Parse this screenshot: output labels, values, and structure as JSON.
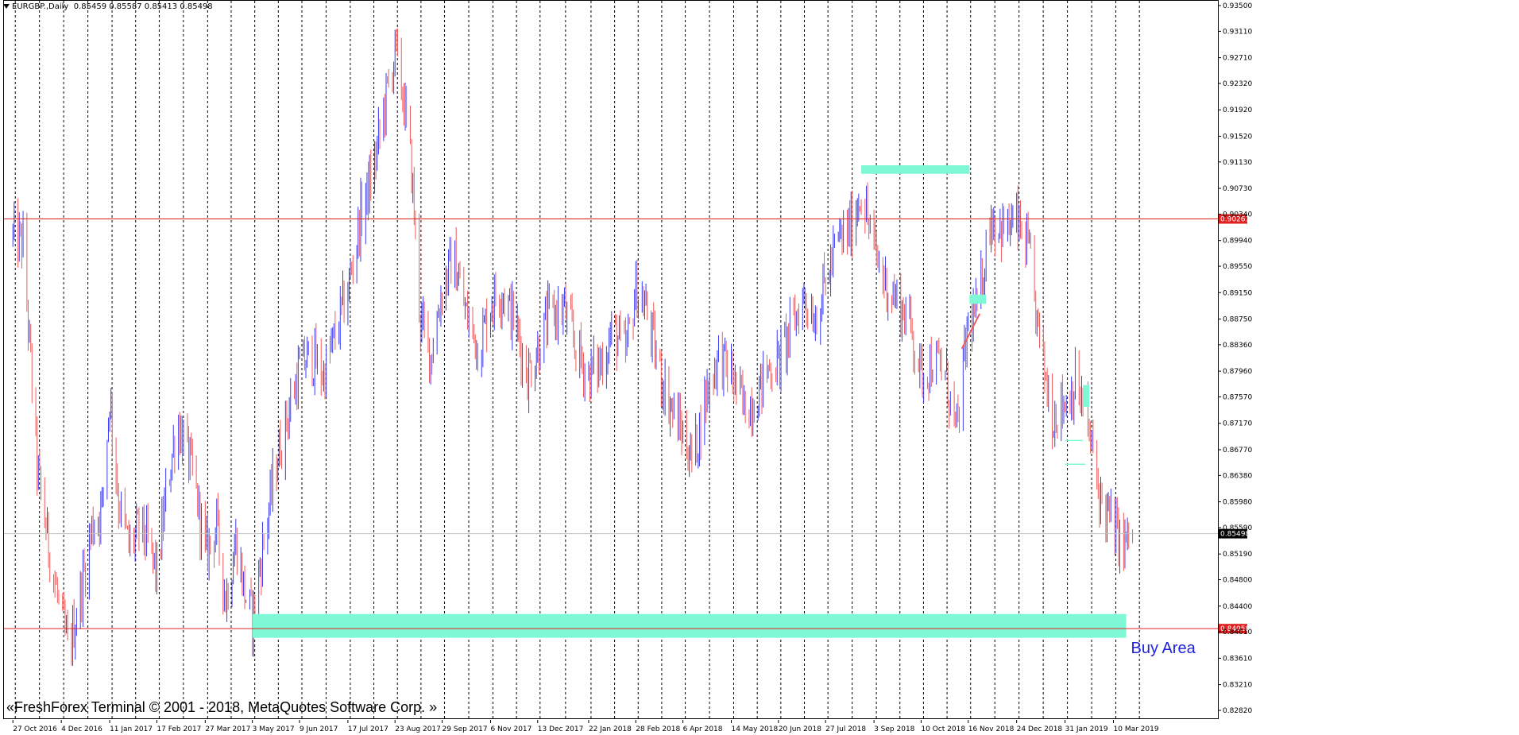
{
  "window": {
    "symbol": "EURGBP.",
    "timeframe": "Daily",
    "ohlc": "0.85459 0.85587 0.85413 0.85498"
  },
  "copyright": "«FreshForex Terminal © 2001 - 2018, MetaQuotes Software Corp. »",
  "annotation_label": "Buy Area",
  "colors": {
    "background": "#ffffff",
    "bull_candle": "#3b3bf0",
    "bear_candle": "#f05a5a",
    "zone": "#7ff8d6",
    "level_line": "#e02020",
    "price_tag": "#e02020",
    "current_price_tag": "#000000",
    "annotation": "#1e22dc"
  },
  "chart_data": {
    "type": "candlestick",
    "y_axis": {
      "min": 0.8282,
      "max": 0.935,
      "ticks": [
        "0.93500",
        "0.93110",
        "0.92710",
        "0.92320",
        "0.91920",
        "0.91520",
        "0.91130",
        "0.90730",
        "0.90340",
        "0.89940",
        "0.89550",
        "0.89150",
        "0.88750",
        "0.88360",
        "0.87960",
        "0.87570",
        "0.87170",
        "0.86770",
        "0.86380",
        "0.85980",
        "0.85590",
        "0.85190",
        "0.84800",
        "0.84400",
        "0.84010",
        "0.83610",
        "0.83210",
        "0.82820"
      ]
    },
    "x_axis": {
      "labels": [
        "27 Oct 2016",
        "4 Dec 2016",
        "11 Jan 2017",
        "17 Feb 2017",
        "27 Mar 2017",
        "3 May 2017",
        "9 Jun 2017",
        "17 Jul 2017",
        "23 Aug 2017",
        "29 Sep 2017",
        "6 Nov 2017",
        "13 Dec 2017",
        "22 Jan 2018",
        "28 Feb 2018",
        "6 Apr 2018",
        "14 May 2018",
        "20 Jun 2018",
        "27 Jul 2018",
        "3 Sep 2018",
        "10 Oct 2018",
        "16 Nov 2018",
        "24 Dec 2018",
        "31 Jan 2019",
        "10 Mar 2019"
      ]
    },
    "price_path": [
      [
        "27 Oct 2016",
        0.9
      ],
      [
        "4 Nov 2016",
        0.899
      ],
      [
        "15 Nov 2016",
        0.865
      ],
      [
        "25 Nov 2016",
        0.852
      ],
      [
        "4 Dec 2016",
        0.842
      ],
      [
        "10 Dec 2016",
        0.837
      ],
      [
        "20 Dec 2016",
        0.847
      ],
      [
        "28 Dec 2016",
        0.856
      ],
      [
        "5 Jan 2017",
        0.859
      ],
      [
        "11 Jan 2017",
        0.876
      ],
      [
        "18 Jan 2017",
        0.86
      ],
      [
        "26 Jan 2017",
        0.853
      ],
      [
        "5 Feb 2017",
        0.856
      ],
      [
        "17 Feb 2017",
        0.849
      ],
      [
        "25 Feb 2017",
        0.862
      ],
      [
        "5 Mar 2017",
        0.872
      ],
      [
        "12 Mar 2017",
        0.868
      ],
      [
        "20 Mar 2017",
        0.861
      ],
      [
        "27 Mar 2017",
        0.852
      ],
      [
        "5 Apr 2017",
        0.856
      ],
      [
        "12 Apr 2017",
        0.845
      ],
      [
        "20 Apr 2017",
        0.854
      ],
      [
        "27 Apr 2017",
        0.846
      ],
      [
        "3 May 2017",
        0.842
      ],
      [
        "12 May 2017",
        0.854
      ],
      [
        "22 May 2017",
        0.866
      ],
      [
        "1 Jun 2017",
        0.874
      ],
      [
        "9 Jun 2017",
        0.88
      ],
      [
        "18 Jun 2017",
        0.882
      ],
      [
        "28 Jun 2017",
        0.879
      ],
      [
        "7 Jul 2017",
        0.885
      ],
      [
        "17 Jul 2017",
        0.892
      ],
      [
        "27 Jul 2017",
        0.903
      ],
      [
        "6 Aug 2017",
        0.91
      ],
      [
        "15 Aug 2017",
        0.92
      ],
      [
        "23 Aug 2017",
        0.928
      ],
      [
        "29 Aug 2017",
        0.922
      ],
      [
        "5 Sep 2017",
        0.91
      ],
      [
        "12 Sep 2017",
        0.887
      ],
      [
        "20 Sep 2017",
        0.882
      ],
      [
        "29 Sep 2017",
        0.892
      ],
      [
        "8 Oct 2017",
        0.897
      ],
      [
        "18 Oct 2017",
        0.888
      ],
      [
        "28 Oct 2017",
        0.883
      ],
      [
        "6 Nov 2017",
        0.89
      ],
      [
        "15 Nov 2017",
        0.892
      ],
      [
        "25 Nov 2017",
        0.887
      ],
      [
        "5 Dec 2017",
        0.879
      ],
      [
        "13 Dec 2017",
        0.883
      ],
      [
        "22 Dec 2017",
        0.888
      ],
      [
        "3 Jan 2018",
        0.889
      ],
      [
        "12 Jan 2018",
        0.883
      ],
      [
        "22 Jan 2018",
        0.879
      ],
      [
        "1 Feb 2018",
        0.881
      ],
      [
        "10 Feb 2018",
        0.886
      ],
      [
        "20 Feb 2018",
        0.882
      ],
      [
        "28 Feb 2018",
        0.892
      ],
      [
        "8 Mar 2018",
        0.889
      ],
      [
        "18 Mar 2018",
        0.88
      ],
      [
        "28 Mar 2018",
        0.874
      ],
      [
        "6 Apr 2018",
        0.87
      ],
      [
        "14 Apr 2018",
        0.866
      ],
      [
        "24 Apr 2018",
        0.876
      ],
      [
        "4 May 2018",
        0.882
      ],
      [
        "14 May 2018",
        0.879
      ],
      [
        "24 May 2018",
        0.874
      ],
      [
        "3 Jun 2018",
        0.876
      ],
      [
        "12 Jun 2018",
        0.88
      ],
      [
        "20 Jun 2018",
        0.881
      ],
      [
        "30 Jun 2018",
        0.886
      ],
      [
        "10 Jul 2018",
        0.891
      ],
      [
        "19 Jul 2018",
        0.888
      ],
      [
        "27 Jul 2018",
        0.893
      ],
      [
        "5 Aug 2018",
        0.899
      ],
      [
        "15 Aug 2018",
        0.901
      ],
      [
        "24 Aug 2018",
        0.907
      ],
      [
        "3 Sep 2018",
        0.898
      ],
      [
        "12 Sep 2018",
        0.893
      ],
      [
        "22 Sep 2018",
        0.89
      ],
      [
        "1 Oct 2018",
        0.887
      ],
      [
        "10 Oct 2018",
        0.879
      ],
      [
        "18 Oct 2018",
        0.881
      ],
      [
        "28 Oct 2018",
        0.88
      ],
      [
        "7 Nov 2018",
        0.87
      ],
      [
        "16 Nov 2018",
        0.887
      ],
      [
        "24 Nov 2018",
        0.889
      ],
      [
        "3 Dec 2018",
        0.903
      ],
      [
        "14 Dec 2018",
        0.901
      ],
      [
        "24 Dec 2018",
        0.902
      ],
      [
        "2 Jan 2019",
        0.898
      ],
      [
        "11 Jan 2019",
        0.884
      ],
      [
        "21 Jan 2019",
        0.873
      ],
      [
        "31 Jan 2019",
        0.875
      ],
      [
        "9 Feb 2019",
        0.878
      ],
      [
        "19 Feb 2019",
        0.87
      ],
      [
        "28 Feb 2019",
        0.86
      ],
      [
        "10 Mar 2019",
        0.856
      ],
      [
        "18 Mar 2019",
        0.853
      ],
      [
        "25 Mar 2019",
        0.855
      ]
    ],
    "levels": [
      {
        "price": 0.90267,
        "label": "0.90267"
      },
      {
        "price": 0.84058,
        "label": "0.84058"
      }
    ],
    "current_price": {
      "price": 0.85498,
      "label": "0.85498"
    },
    "zones": [
      {
        "name": "buy-area-zone",
        "from": "3 May 2017",
        "to": "20 Mar 2019",
        "low": 0.8392,
        "high": 0.8428
      },
      {
        "name": "top-resistance-zone",
        "from": "24 Aug 2018",
        "to": "17 Nov 2018",
        "low": 0.9095,
        "high": 0.9108
      },
      {
        "name": "small-zone-nov-2018",
        "from": "17 Nov 2018",
        "to": "30 Nov 2018",
        "low": 0.8898,
        "high": 0.8912
      },
      {
        "name": "small-zone-feb-2019",
        "from": "14 Feb 2019",
        "to": "19 Feb 2019",
        "low": 0.8742,
        "high": 0.8775
      }
    ],
    "small_segments": [
      {
        "name": "red-trend-segment",
        "from": [
          "11 Nov 2018",
          0.883
        ],
        "to": [
          "25 Nov 2018",
          0.8883
        ]
      },
      {
        "name": "cyan-segment-1",
        "from": [
          "31 Jan 2019",
          0.8691
        ],
        "to": [
          "14 Feb 2019",
          0.8691
        ]
      },
      {
        "name": "cyan-segment-2",
        "from": [
          "31 Jan 2019",
          0.8655
        ],
        "to": [
          "16 Feb 2019",
          0.8655
        ]
      }
    ]
  }
}
